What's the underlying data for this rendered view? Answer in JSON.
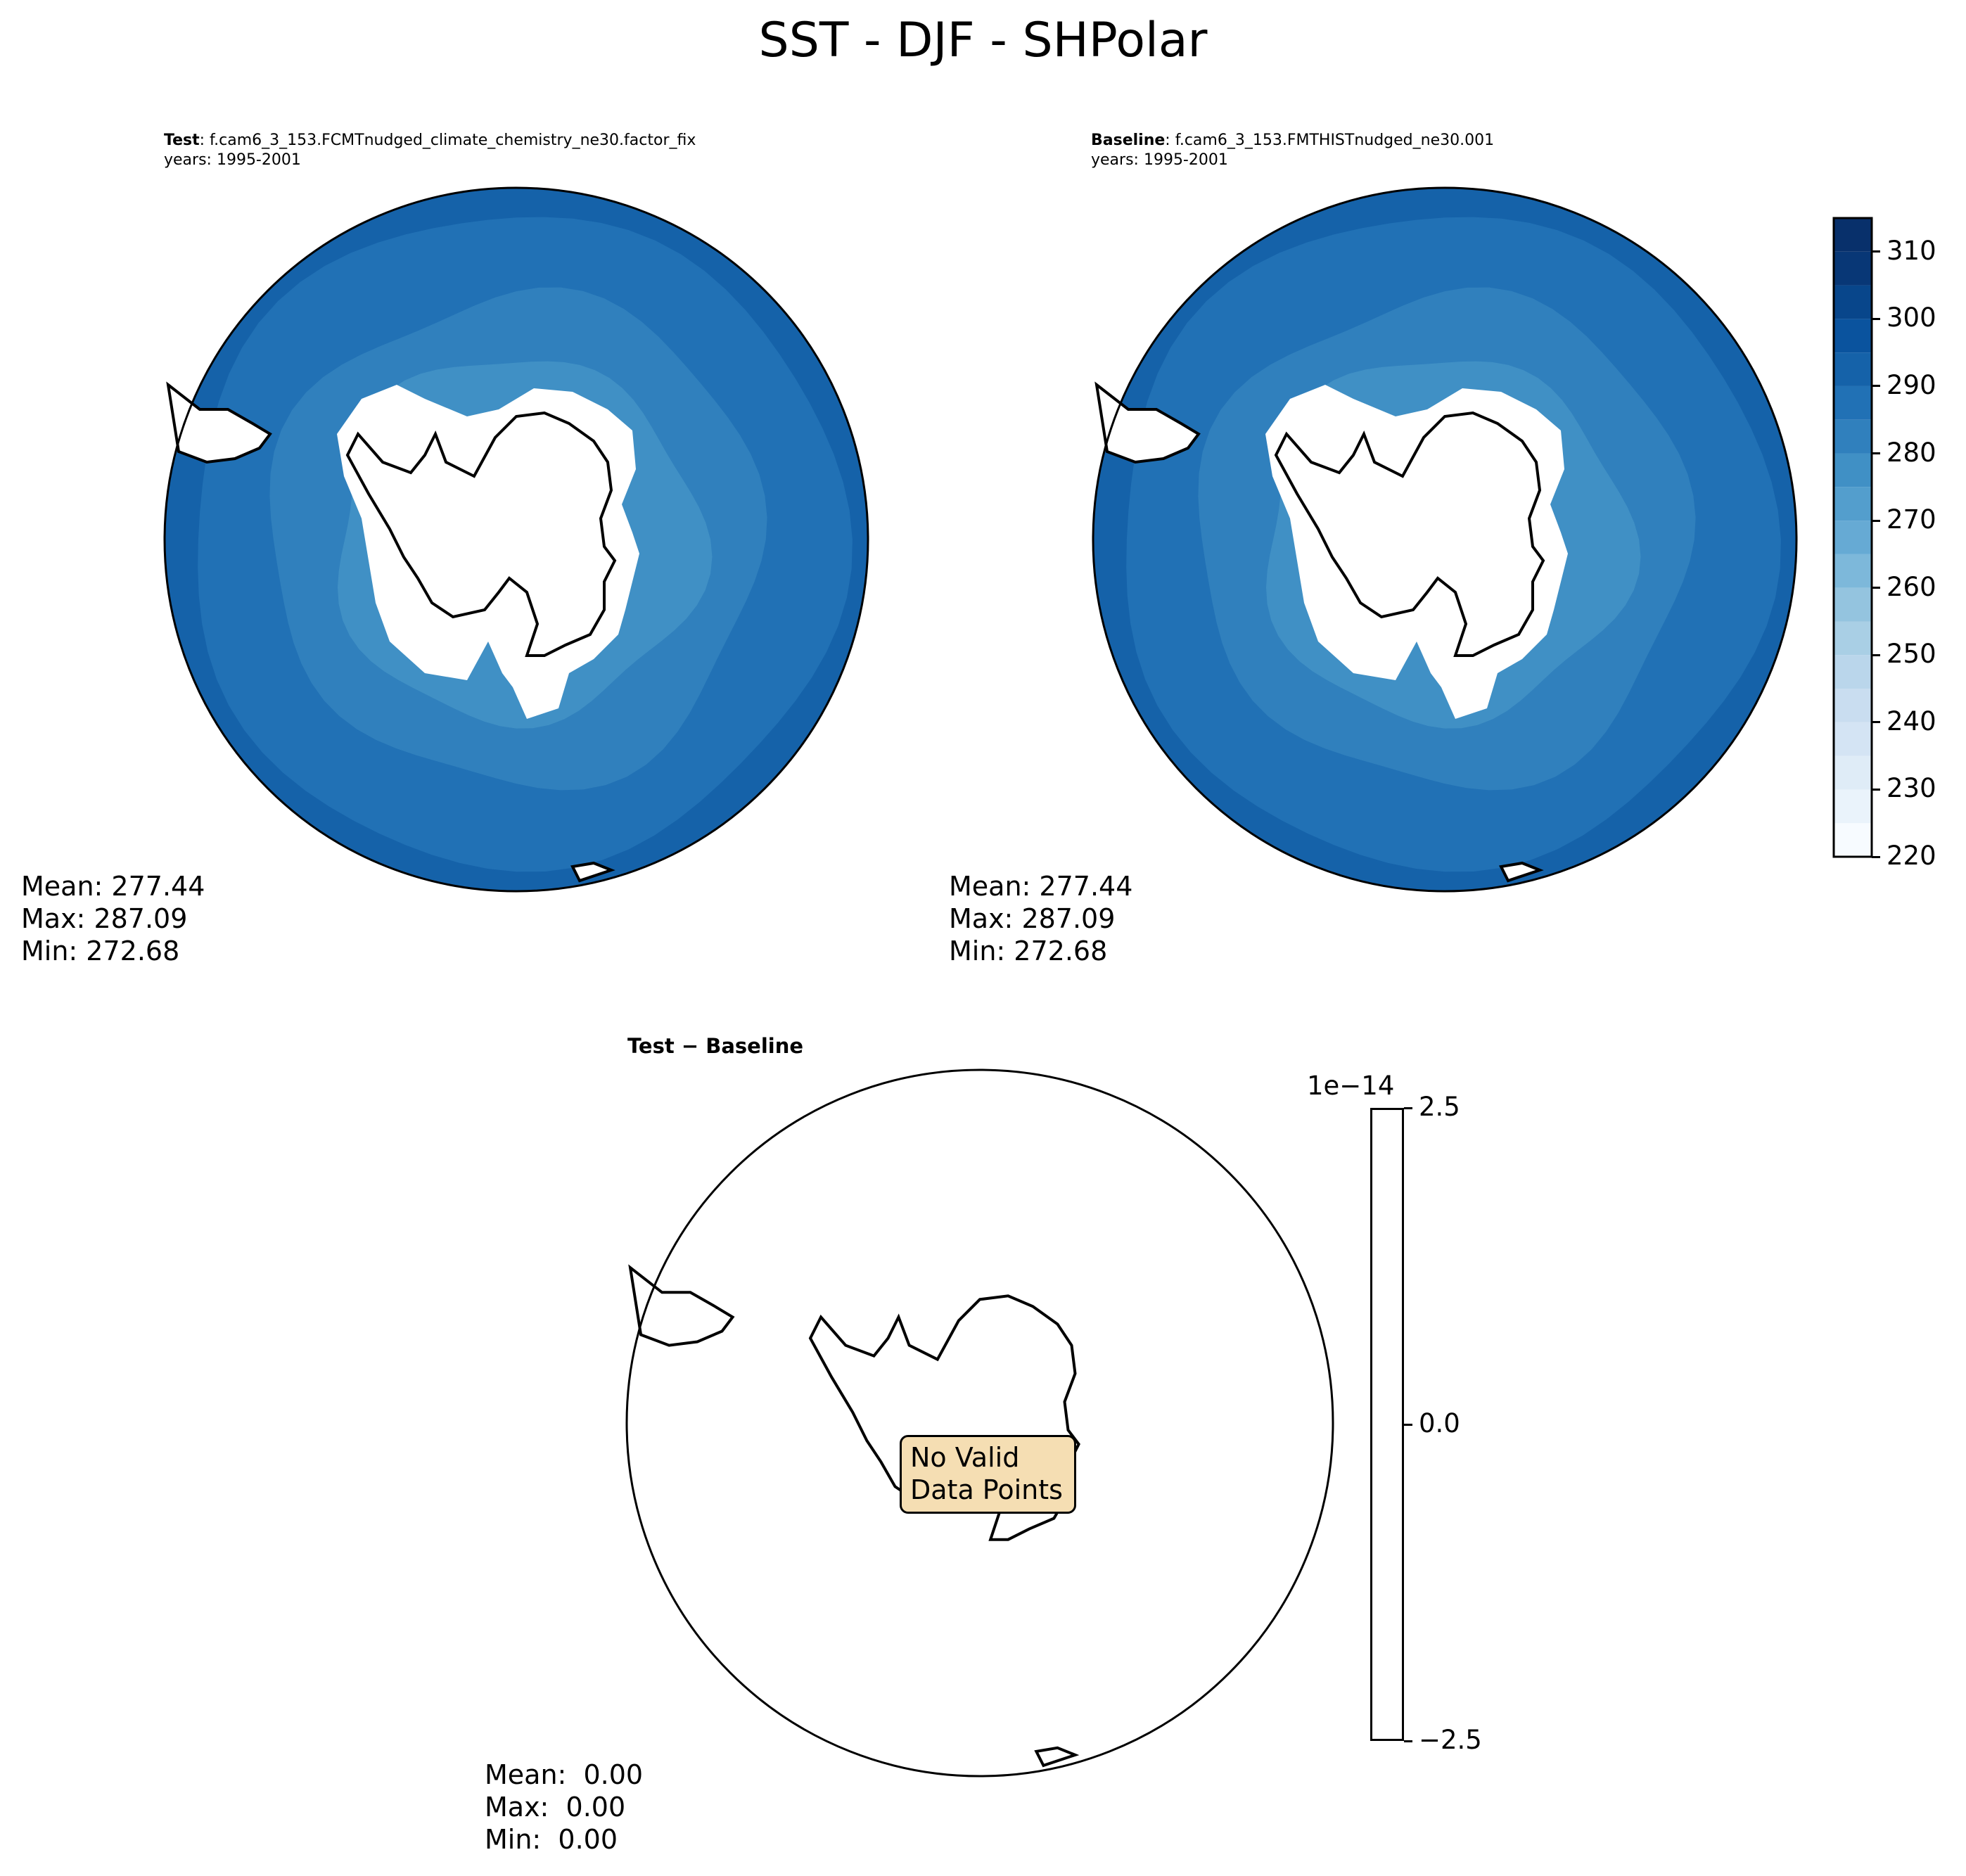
{
  "figure": {
    "title": "SST - DJF - SHPolar"
  },
  "panels": [
    {
      "label_bold": "Test",
      "label_rest": ": f.cam6_3_153.FCMTnudged_climate_chemistry_ne30.factor_fix",
      "years": "years: 1995-2001",
      "stats": {
        "mean": "Mean: 277.44",
        "max": "Max: 287.09",
        "min": "Min: 272.68"
      }
    },
    {
      "label_bold": "Baseline",
      "label_rest": ": f.cam6_3_153.FMTHISTnudged_ne30.001",
      "years": "years: 1995-2001",
      "stats": {
        "mean": "Mean: 277.44",
        "max": "Max: 287.09",
        "min": "Min: 272.68"
      }
    },
    {
      "label": "Test − Baseline",
      "stats": {
        "mean": "Mean:  0.00",
        "max": "Max:  0.00",
        "min": "Min:  0.00"
      },
      "annotation": "No Valid\nData Points"
    }
  ],
  "colorbars": {
    "main": {
      "ticks": [
        "220",
        "230",
        "240",
        "250",
        "260",
        "270",
        "280",
        "290",
        "300",
        "310"
      ],
      "levels": [
        220,
        225,
        230,
        235,
        240,
        245,
        250,
        255,
        260,
        265,
        270,
        275,
        280,
        285,
        290,
        295,
        300,
        305,
        310,
        315
      ],
      "colors": [
        "#f7fbff",
        "#eaf3fb",
        "#dfecf7",
        "#d4e4f4",
        "#c9ddf0",
        "#bad6eb",
        "#a9cfe5",
        "#94c4df",
        "#7db8da",
        "#66aad4",
        "#539ecd",
        "#4090c5",
        "#3080bd",
        "#2171b5",
        "#1562a9",
        "#0a539e",
        "#08468b",
        "#083776",
        "#08306b"
      ]
    },
    "diff": {
      "ticks": [
        "2.5",
        "0.0",
        "−2.5"
      ],
      "offset_label": "1e−14"
    }
  },
  "chart_data": [
    {
      "type": "heatmap",
      "title": "Test : f.cam6_3_153.FCMTnudged_climate_chemistry_ne30.factor_fix",
      "projection": "south-polar-stereographic",
      "variable": "SST",
      "season": "DJF",
      "years": "1995-2001",
      "value_range": [
        220,
        315
      ],
      "mean": 277.44,
      "max": 287.09,
      "min": 272.68
    },
    {
      "type": "heatmap",
      "title": "Baseline : f.cam6_3_153.FMTHISTnudged_ne30.001",
      "projection": "south-polar-stereographic",
      "variable": "SST",
      "season": "DJF",
      "years": "1995-2001",
      "value_range": [
        220,
        315
      ],
      "mean": 277.44,
      "max": 287.09,
      "min": 272.68
    },
    {
      "type": "heatmap",
      "title": "Test − Baseline",
      "projection": "south-polar-stereographic",
      "value_range": [
        -2.5e-14,
        2.5e-14
      ],
      "mean": 0.0,
      "max": 0.0,
      "min": 0.0,
      "note": "No Valid Data Points"
    }
  ]
}
